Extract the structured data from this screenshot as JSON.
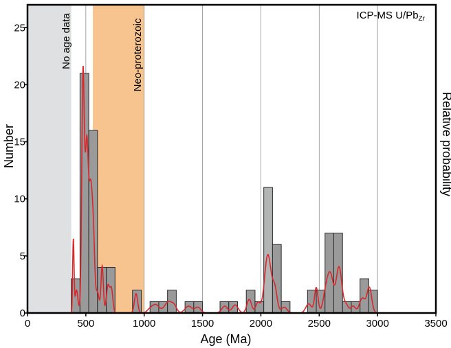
{
  "chart_data": {
    "type": "bar",
    "corner_label": "ICP-MS U/Pb",
    "corner_label_subscript": "Zr",
    "xlabel": "Age (Ma)",
    "ylabel": "Number",
    "ylabel_right": "Relative probability",
    "xlim": [
      0,
      3500
    ],
    "ylim": [
      0,
      27
    ],
    "xticks": [
      0,
      500,
      1000,
      1500,
      2000,
      2500,
      3000,
      3500
    ],
    "yticks": [
      0,
      5,
      10,
      15,
      20,
      25
    ],
    "vertical_gridlines": [
      500,
      1000,
      1500,
      2000,
      2500,
      3000
    ],
    "shaded_zones": [
      {
        "label": "No age data",
        "start": 0,
        "end": 375,
        "color": "#dfe0e1"
      },
      {
        "label": "Neo-proterozoic",
        "start": 560,
        "end": 1000,
        "color": "#f7c490"
      }
    ],
    "bar_color": "#9a9a9a",
    "highlight_bar_color": "#b3b4b4",
    "curve_color": "#d8282c",
    "bin_width": 75,
    "bars": [
      {
        "start": 375,
        "value": 3
      },
      {
        "start": 450,
        "value": 21
      },
      {
        "start": 525,
        "value": 16
      },
      {
        "start": 600,
        "value": 4
      },
      {
        "start": 675,
        "value": 4
      },
      {
        "start": 900,
        "value": 2
      },
      {
        "start": 1050,
        "value": 1
      },
      {
        "start": 1125,
        "value": 1
      },
      {
        "start": 1200,
        "value": 2
      },
      {
        "start": 1350,
        "value": 1
      },
      {
        "start": 1425,
        "value": 1
      },
      {
        "start": 1650,
        "value": 1
      },
      {
        "start": 1725,
        "value": 1
      },
      {
        "start": 1875,
        "value": 2
      },
      {
        "start": 1950,
        "value": 1
      },
      {
        "start": 2025,
        "value": 11,
        "highlight": true
      },
      {
        "start": 2100,
        "value": 6
      },
      {
        "start": 2175,
        "value": 1
      },
      {
        "start": 2400,
        "value": 2
      },
      {
        "start": 2475,
        "value": 2
      },
      {
        "start": 2550,
        "value": 7
      },
      {
        "start": 2625,
        "value": 7
      },
      {
        "start": 2700,
        "value": 1
      },
      {
        "start": 2775,
        "value": 1
      },
      {
        "start": 2850,
        "value": 3
      },
      {
        "start": 2925,
        "value": 2
      }
    ],
    "probability_peaks": [
      {
        "center": 393,
        "height": 6.4,
        "width": 6
      },
      {
        "center": 420,
        "height": 2.0,
        "width": 12
      },
      {
        "center": 475,
        "height": 16,
        "width": 10
      },
      {
        "center": 490,
        "height": 7.5,
        "width": 18
      },
      {
        "center": 510,
        "height": 10,
        "width": 12
      },
      {
        "center": 540,
        "height": 10.5,
        "width": 15
      },
      {
        "center": 565,
        "height": 5.5,
        "width": 12
      },
      {
        "center": 600,
        "height": 1.8,
        "width": 14
      },
      {
        "center": 640,
        "height": 4.1,
        "width": 10
      },
      {
        "center": 690,
        "height": 2.4,
        "width": 14
      },
      {
        "center": 720,
        "height": 2.0,
        "width": 12
      },
      {
        "center": 930,
        "height": 1.7,
        "width": 14
      },
      {
        "center": 1050,
        "height": 0.3,
        "width": 25
      },
      {
        "center": 1100,
        "height": 0.7,
        "width": 30
      },
      {
        "center": 1210,
        "height": 1.0,
        "width": 35
      },
      {
        "center": 1260,
        "height": 0.4,
        "width": 20
      },
      {
        "center": 1380,
        "height": 0.6,
        "width": 30
      },
      {
        "center": 1460,
        "height": 0.5,
        "width": 25
      },
      {
        "center": 1690,
        "height": 0.6,
        "width": 25
      },
      {
        "center": 1780,
        "height": 0.7,
        "width": 25
      },
      {
        "center": 1900,
        "height": 1.2,
        "width": 20
      },
      {
        "center": 1975,
        "height": 0.9,
        "width": 20
      },
      {
        "center": 2060,
        "height": 5.1,
        "width": 28
      },
      {
        "center": 2120,
        "height": 2.0,
        "width": 20
      },
      {
        "center": 2200,
        "height": 0.5,
        "width": 25
      },
      {
        "center": 2410,
        "height": 0.8,
        "width": 25
      },
      {
        "center": 2475,
        "height": 2.2,
        "width": 15
      },
      {
        "center": 2560,
        "height": 1.9,
        "width": 25
      },
      {
        "center": 2600,
        "height": 2.9,
        "width": 25
      },
      {
        "center": 2670,
        "height": 4.0,
        "width": 24
      },
      {
        "center": 2730,
        "height": 0.7,
        "width": 20
      },
      {
        "center": 2790,
        "height": 0.6,
        "width": 20
      },
      {
        "center": 2870,
        "height": 1.3,
        "width": 25
      },
      {
        "center": 2930,
        "height": 2.2,
        "width": 20
      }
    ]
  }
}
